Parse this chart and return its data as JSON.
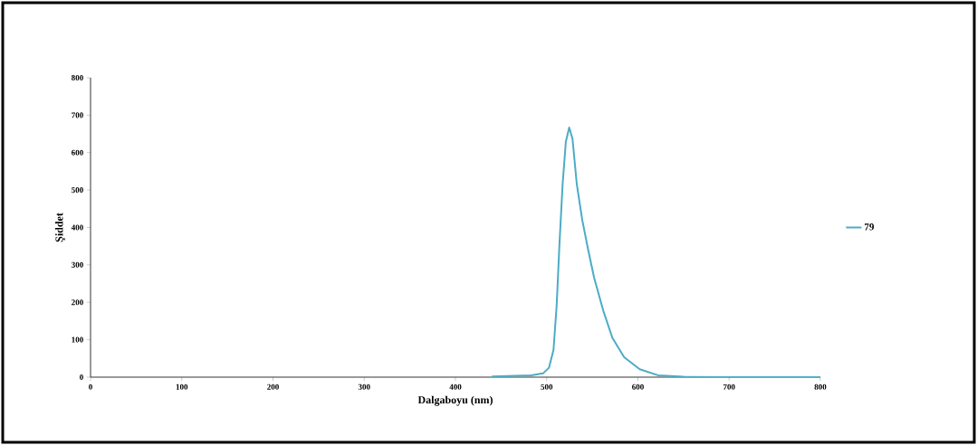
{
  "chart_data": {
    "type": "line",
    "xlabel": "Dalgaboyu (nm)",
    "ylabel": "Şiddet",
    "xlim": [
      0,
      800
    ],
    "ylim": [
      0,
      800
    ],
    "xticks": [
      0,
      100,
      200,
      300,
      400,
      500,
      600,
      700,
      800
    ],
    "yticks": [
      0,
      100,
      200,
      300,
      400,
      500,
      600,
      700,
      800
    ],
    "grid": false,
    "legend": "right",
    "marker": "none",
    "line_style": "solid",
    "series": [
      {
        "name": "79",
        "color": "#4bacc6",
        "x": [
          440,
          483,
          496,
          502.5,
          507.5,
          511,
          514,
          517.5,
          521,
          524.7,
          528.3,
          533,
          539,
          545.6,
          552,
          562,
          572,
          585,
          602,
          622,
          650,
          700,
          800
        ],
        "values": [
          2,
          5,
          10,
          25,
          73,
          194,
          355,
          516,
          629,
          667,
          637,
          516,
          420,
          339,
          266,
          178,
          105,
          53,
          21,
          5,
          1,
          0,
          0
        ]
      }
    ]
  }
}
